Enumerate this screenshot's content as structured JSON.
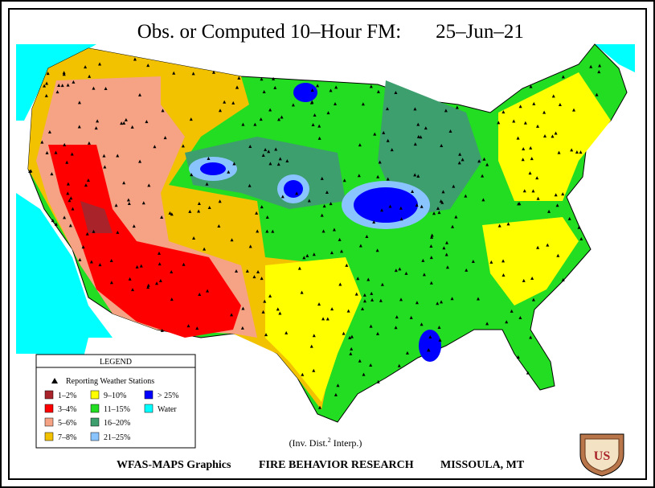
{
  "header": {
    "title": "Obs. or Computed 10–Hour FM:",
    "date": "25–Jun–21"
  },
  "legend": {
    "title": "LEGEND",
    "stations_label": "Reporting Weather Stations",
    "items": [
      {
        "label": "1–2%",
        "color": "#a8232a"
      },
      {
        "label": "3–4%",
        "color": "#ff0000"
      },
      {
        "label": "5–6%",
        "color": "#f6a284"
      },
      {
        "label": "7–8%",
        "color": "#f2c200"
      },
      {
        "label": "9–10%",
        "color": "#ffff00"
      },
      {
        "label": "11–15%",
        "color": "#22dd22"
      },
      {
        "label": "16–20%",
        "color": "#3d9e6e"
      },
      {
        "label": "21–25%",
        "color": "#8ac4ff"
      },
      {
        "label": "> 25%",
        "color": "#0000ff"
      },
      {
        "label": "Water",
        "color": "#00ffff"
      }
    ]
  },
  "note": {
    "prefix": "(Inv. Dist.",
    "superscript": "2",
    "suffix": " Interp.)"
  },
  "footer": {
    "left": "WFAS-MAPS Graphics",
    "middle": "FIRE BEHAVIOR RESEARCH",
    "right": "MISSOULA, MT"
  },
  "logo": {
    "text": "US"
  }
}
